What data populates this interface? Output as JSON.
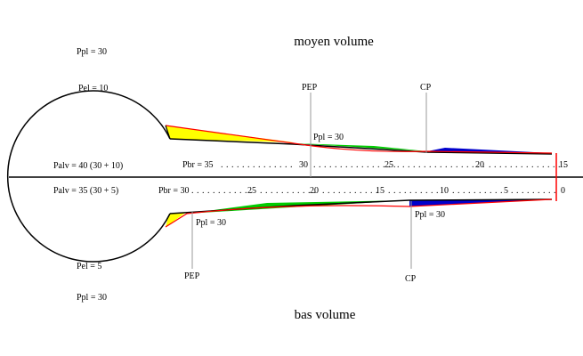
{
  "titles": {
    "top": "moyen volume",
    "bottom": "bas volume"
  },
  "upper": {
    "ppl_outside": "Ppl = 30",
    "pel": "Pel = 10",
    "palv": "Palv = 40 (30 + 10)",
    "pbr_label": "Pbr = 35",
    "ticks": [
      "30",
      "25",
      "20",
      "15"
    ],
    "pep_label": "PEP",
    "cp_label": "CP",
    "ppl_airway": "Ppl = 30"
  },
  "lower": {
    "ppl_outside": "Ppl = 30",
    "pel": "Pel = 5",
    "palv": "Palv = 35 (30 + 5)",
    "pbr_label": "Pbr = 30",
    "ticks": [
      "25",
      "20",
      "15",
      "10",
      "5",
      "0"
    ],
    "pep_label": "PEP",
    "cp_label": "CP",
    "ppl_airway_left": "Ppl = 30",
    "ppl_airway_right": "Ppl = 30"
  },
  "colors": {
    "yellow": "#ffff00",
    "green": "#00cc00",
    "blue": "#0000cc",
    "red": "#ff0000",
    "line": "#000000",
    "marker": "#999999"
  }
}
